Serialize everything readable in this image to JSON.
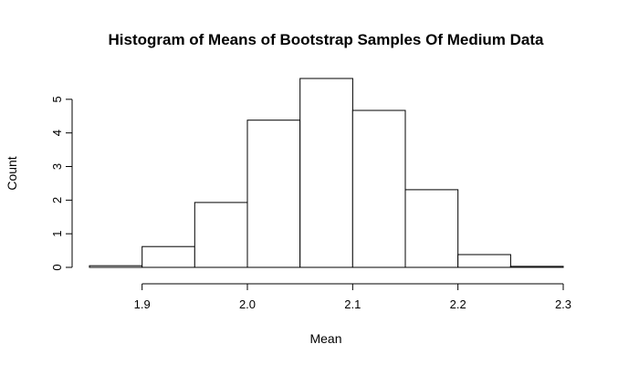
{
  "chart_data": {
    "type": "bar",
    "title": "Histogram of Means of Bootstrap Samples Of Medium Data",
    "xlabel": "Mean",
    "ylabel": "Count",
    "bins": [
      {
        "start": 1.85,
        "end": 1.9,
        "value": 0.05
      },
      {
        "start": 1.9,
        "end": 1.95,
        "value": 0.62
      },
      {
        "start": 1.95,
        "end": 2.0,
        "value": 1.93
      },
      {
        "start": 2.0,
        "end": 2.05,
        "value": 4.38
      },
      {
        "start": 2.05,
        "end": 2.1,
        "value": 5.62
      },
      {
        "start": 2.1,
        "end": 2.15,
        "value": 4.67
      },
      {
        "start": 2.15,
        "end": 2.2,
        "value": 2.31
      },
      {
        "start": 2.2,
        "end": 2.25,
        "value": 0.38
      },
      {
        "start": 2.25,
        "end": 2.3,
        "value": 0.03
      }
    ],
    "xlim": [
      1.85,
      2.3
    ],
    "ylim": [
      0,
      5.62
    ],
    "x_ticks": [
      "1.9",
      "2.0",
      "2.1",
      "2.2",
      "2.3"
    ],
    "y_ticks": [
      "0",
      "1",
      "2",
      "3",
      "4",
      "5"
    ],
    "grid": false,
    "colors": {
      "fill": "#ffffff",
      "stroke": "#000000"
    }
  }
}
